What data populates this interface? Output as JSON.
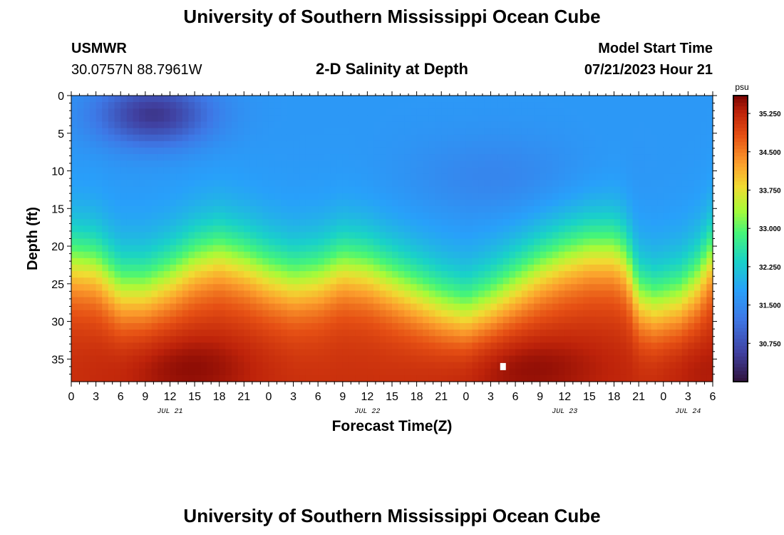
{
  "header": {
    "title": "University of Southern Mississippi Ocean Cube",
    "station": "USMWR",
    "coordinates": "30.0757N  88.7961W",
    "subtitle": "2-D Salinity at Depth",
    "model_start_label": "Model Start Time",
    "model_start_value": "07/21/2023 Hour 21"
  },
  "footer": {
    "title": "University of Southern Mississippi Ocean Cube"
  },
  "chart_data": {
    "type": "heatmap",
    "title": "2-D Salinity at Depth",
    "xlabel": "Forecast Time(Z)",
    "ylabel": "Depth (ft)",
    "x_hours_start": 0,
    "x_hours_end": 78,
    "x_tick_labels": [
      "0",
      "3",
      "6",
      "9",
      "12",
      "15",
      "18",
      "21",
      "0",
      "3",
      "6",
      "9",
      "12",
      "15",
      "18",
      "21",
      "0",
      "3",
      "6",
      "9",
      "12",
      "15",
      "18",
      "21",
      "0",
      "3",
      "6"
    ],
    "date_labels": [
      {
        "hour": 12,
        "label": "JUL 21"
      },
      {
        "hour": 36,
        "label": "JUL 22"
      },
      {
        "hour": 60,
        "label": "JUL 23"
      },
      {
        "hour": 75,
        "label": "JUL 24"
      }
    ],
    "y_range": [
      0,
      38
    ],
    "y_ticks": [
      0,
      5,
      10,
      15,
      20,
      25,
      30,
      35
    ],
    "colorbar": {
      "unit": "psu",
      "range": [
        30.0,
        35.6
      ],
      "ticks": [
        "35.250",
        "34.500",
        "33.750",
        "33.000",
        "32.250",
        "31.500",
        "30.750"
      ]
    },
    "halocline_depth_ft": [
      {
        "hour": 0,
        "depth": 22
      },
      {
        "hour": 3,
        "depth": 22.5
      },
      {
        "hour": 6,
        "depth": 25.5
      },
      {
        "hour": 9,
        "depth": 25.5
      },
      {
        "hour": 12,
        "depth": 24
      },
      {
        "hour": 15,
        "depth": 22
      },
      {
        "hour": 18,
        "depth": 21
      },
      {
        "hour": 21,
        "depth": 22
      },
      {
        "hour": 24,
        "depth": 23.5
      },
      {
        "hour": 27,
        "depth": 24.5
      },
      {
        "hour": 30,
        "depth": 24
      },
      {
        "hour": 33,
        "depth": 22.5
      },
      {
        "hour": 36,
        "depth": 23
      },
      {
        "hour": 39,
        "depth": 24.5
      },
      {
        "hour": 42,
        "depth": 26
      },
      {
        "hour": 45,
        "depth": 27.5
      },
      {
        "hour": 48,
        "depth": 28.5
      },
      {
        "hour": 51,
        "depth": 27
      },
      {
        "hour": 54,
        "depth": 25
      },
      {
        "hour": 57,
        "depth": 23
      },
      {
        "hour": 60,
        "depth": 21.5
      },
      {
        "hour": 63,
        "depth": 20.5
      },
      {
        "hour": 66,
        "depth": 20.5
      },
      {
        "hour": 67.5,
        "depth": 22
      },
      {
        "hour": 69,
        "depth": 26.5
      },
      {
        "hour": 71,
        "depth": 27.5
      },
      {
        "hour": 74,
        "depth": 26.5
      },
      {
        "hour": 76,
        "depth": 24.5
      },
      {
        "hour": 78,
        "depth": 21
      }
    ],
    "marker": {
      "hour": 52.5,
      "depth": 36
    }
  }
}
